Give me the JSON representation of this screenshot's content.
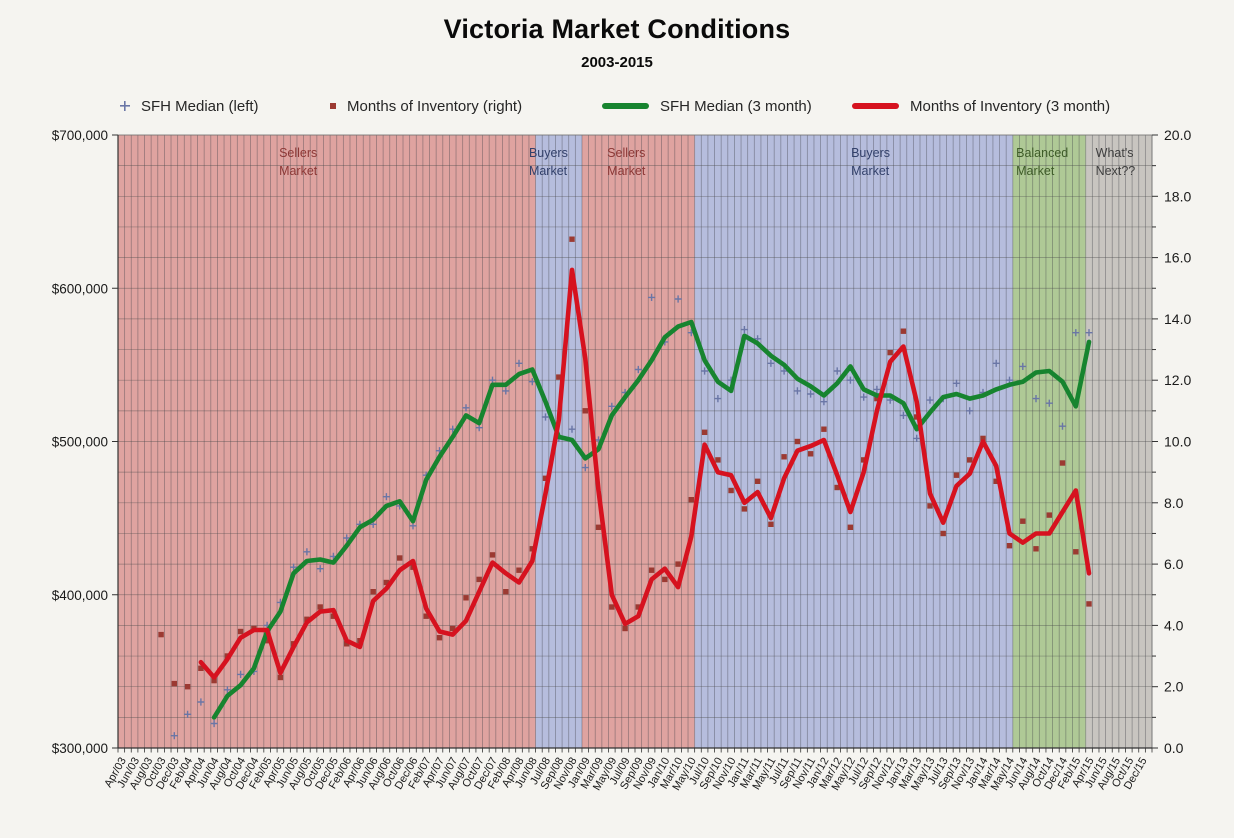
{
  "title": "Victoria Market Conditions",
  "subtitle": "2003-2015",
  "legend": [
    {
      "label": "SFH Median (left)",
      "marker": "plus",
      "color": "#6a76a6"
    },
    {
      "label": "Months of Inventory (right)",
      "marker": "square",
      "color": "#9c3a32"
    },
    {
      "label": "SFH Median (3 month)",
      "marker": "line",
      "color": "#17842f"
    },
    {
      "label": "Months of Inventory (3 month)",
      "marker": "line",
      "color": "#d6121f"
    }
  ],
  "chart_data": {
    "type": "line",
    "title": "Victoria Market Conditions",
    "subtitle": "2003-2015",
    "total_months": 156,
    "months_per_tick": 2,
    "x_tick_labels": [
      "Apr/03",
      "Jun/03",
      "Aug/03",
      "Oct/03",
      "Dec/03",
      "Feb/04",
      "Apr/04",
      "Jun/04",
      "Aug/04",
      "Oct/04",
      "Dec/04",
      "Feb/05",
      "Apr/05",
      "Jun/05",
      "Aug/05",
      "Oct/05",
      "Dec/05",
      "Feb/06",
      "Apr/06",
      "Jun/06",
      "Aug/06",
      "Oct/06",
      "Dec/06",
      "Feb/07",
      "Apr/07",
      "Jun/07",
      "Aug/07",
      "Oct/07",
      "Dec/07",
      "Feb/08",
      "Apr/08",
      "Jun/08",
      "Jul/08",
      "Sep/08",
      "Nov/08",
      "Jan/09",
      "Mar/09",
      "May/09",
      "Jul/09",
      "Sep/09",
      "Nov/09",
      "Jan/10",
      "Mar/10",
      "May/10",
      "Jul/10",
      "Sep/10",
      "Nov/10",
      "Jan/11",
      "Mar/11",
      "May/11",
      "Jul/11",
      "Sep/11",
      "Nov/11",
      "Jan/12",
      "Mar/12",
      "May/12",
      "Jul/12",
      "Sep/12",
      "Nov/12",
      "Jan/13",
      "Mar/13",
      "May/13",
      "Jul/13",
      "Sep/13",
      "Nov/13",
      "Jan/14",
      "Mar/14",
      "May/14",
      "Jun/14",
      "Aug/14",
      "Oct/14",
      "Dec/14",
      "Feb/15",
      "Apr/15",
      "Jun/15",
      "Aug/15",
      "Oct/15",
      "Dec/15"
    ],
    "left_axis": {
      "min": 300000,
      "max": 700000,
      "tick_labels": [
        "$700,000",
        "$600,000",
        "$500,000",
        "$400,000",
        "$300,000"
      ]
    },
    "right_axis": {
      "min": 0,
      "max": 20,
      "tick_labels": [
        "20.0",
        "18.0",
        "16.0",
        "14.0",
        "12.0",
        "10.0",
        "8.0",
        "6.0",
        "4.0",
        "2.0",
        "0.0"
      ]
    },
    "grid": {
      "vertical": "monthly",
      "horizontal": "every 1.0 right-axis unit"
    },
    "regions": [
      {
        "label": "Sellers Market",
        "start_month": 0,
        "end_month": 63,
        "fill": "#dfa3a0",
        "text_color": "#8c3836",
        "label_month": 24.3
      },
      {
        "label": "Buyers Market",
        "start_month": 63,
        "end_month": 70,
        "fill": "#b6bddd",
        "text_color": "#33416b",
        "label_month": 62.0
      },
      {
        "label": "Sellers Market",
        "start_month": 70,
        "end_month": 87,
        "fill": "#dfa3a0",
        "text_color": "#8c3836",
        "label_month": 73.8
      },
      {
        "label": "Buyers Market",
        "start_month": 87,
        "end_month": 135,
        "fill": "#b6bddd",
        "text_color": "#33416b",
        "label_month": 110.6
      },
      {
        "label": "Balanced Market",
        "start_month": 135,
        "end_month": 146,
        "fill": "#afc996",
        "text_color": "#3e5c28",
        "label_month": 135.5
      },
      {
        "label": "What's Next??",
        "start_month": 146,
        "end_month": 156,
        "fill": "#c8c5c0",
        "text_color": "#3f3f3f",
        "label_month": 147.5
      }
    ],
    "series": [
      {
        "name": "SFH Median (left)",
        "axis": "left",
        "style": "scatter-plus",
        "color": "#6a76a6",
        "values": [
          null,
          null,
          null,
          null,
          308000,
          322000,
          330000,
          316000,
          338000,
          348000,
          350000,
          380000,
          395000,
          418000,
          428000,
          417000,
          425000,
          437000,
          446000,
          446000,
          464000,
          458000,
          445000,
          478000,
          494000,
          508000,
          522000,
          509000,
          540000,
          533000,
          551000,
          539000,
          516000,
          502000,
          508000,
          483000,
          501000,
          523000,
          532000,
          547000,
          594000,
          565000,
          593000,
          571000,
          546000,
          528000,
          540000,
          573000,
          567000,
          551000,
          546000,
          533000,
          531000,
          526000,
          546000,
          540000,
          529000,
          534000,
          527000,
          517000,
          502000,
          527000,
          528000,
          538000,
          520000,
          532000,
          551000,
          540000,
          549000,
          528000,
          525000,
          510000,
          571000,
          571000,
          null,
          null,
          null,
          null
        ]
      },
      {
        "name": "Months of Inventory (right)",
        "axis": "right",
        "style": "scatter-square",
        "color": "#9c3a32",
        "values": [
          null,
          null,
          null,
          3.7,
          2.1,
          2.0,
          2.6,
          2.2,
          3.0,
          3.8,
          3.9,
          3.5,
          2.3,
          3.4,
          4.2,
          4.6,
          4.3,
          3.4,
          3.5,
          5.1,
          5.4,
          6.2,
          5.9,
          4.3,
          3.6,
          3.9,
          4.9,
          5.5,
          6.3,
          5.1,
          5.8,
          6.5,
          8.8,
          12.1,
          16.6,
          11.0,
          7.2,
          4.6,
          3.9,
          4.6,
          5.8,
          5.5,
          6.0,
          8.1,
          10.3,
          9.4,
          8.4,
          7.8,
          8.7,
          7.3,
          9.5,
          10.0,
          9.6,
          10.4,
          8.5,
          7.2,
          9.4,
          11.4,
          12.9,
          13.6,
          10.8,
          7.9,
          7.0,
          8.9,
          9.4,
          10.1,
          8.7,
          6.6,
          7.4,
          6.5,
          7.6,
          9.3,
          6.4,
          4.7,
          null,
          null,
          null,
          null
        ]
      },
      {
        "name": "SFH Median (3 month)",
        "axis": "left",
        "style": "line",
        "color": "#17842f",
        "width": 4.6,
        "values": [
          null,
          null,
          null,
          null,
          null,
          null,
          null,
          320000,
          334000,
          341000,
          352000,
          376000,
          389000,
          414000,
          422000,
          423000,
          421000,
          432000,
          444000,
          449000,
          458000,
          461000,
          448000,
          475000,
          490000,
          503000,
          517000,
          512000,
          537000,
          537000,
          544000,
          547000,
          526000,
          503000,
          501000,
          489000,
          495000,
          517000,
          529000,
          540000,
          553000,
          568000,
          575000,
          578000,
          553000,
          539000,
          533000,
          569000,
          564000,
          556000,
          550000,
          541000,
          536000,
          530000,
          538000,
          549000,
          534000,
          530000,
          530000,
          525000,
          508000,
          519000,
          529000,
          531000,
          528000,
          530000,
          534000,
          537000,
          539000,
          545000,
          546000,
          539000,
          523000,
          565000,
          null,
          null,
          null,
          null
        ]
      },
      {
        "name": "Months of Inventory (3 month)",
        "axis": "right",
        "style": "line",
        "color": "#d6121f",
        "width": 4.6,
        "values": [
          null,
          null,
          null,
          null,
          null,
          null,
          2.8,
          2.3,
          2.9,
          3.6,
          3.85,
          3.85,
          2.45,
          3.3,
          4.1,
          4.45,
          4.5,
          3.5,
          3.3,
          4.8,
          5.2,
          5.8,
          6.1,
          4.55,
          3.8,
          3.7,
          4.15,
          5.1,
          6.05,
          5.7,
          5.4,
          6.1,
          8.3,
          10.7,
          15.6,
          12.7,
          8.4,
          5.0,
          4.05,
          4.3,
          5.5,
          5.85,
          5.25,
          6.9,
          9.9,
          9.0,
          8.9,
          8.0,
          8.35,
          7.5,
          8.8,
          9.7,
          9.85,
          10.05,
          8.9,
          7.7,
          9.0,
          11.0,
          12.6,
          13.1,
          11.3,
          8.3,
          7.35,
          8.55,
          8.95,
          10.0,
          9.2,
          7.0,
          6.7,
          7.0,
          7.0,
          7.7,
          8.4,
          5.7,
          null,
          null,
          null,
          null
        ]
      }
    ]
  }
}
